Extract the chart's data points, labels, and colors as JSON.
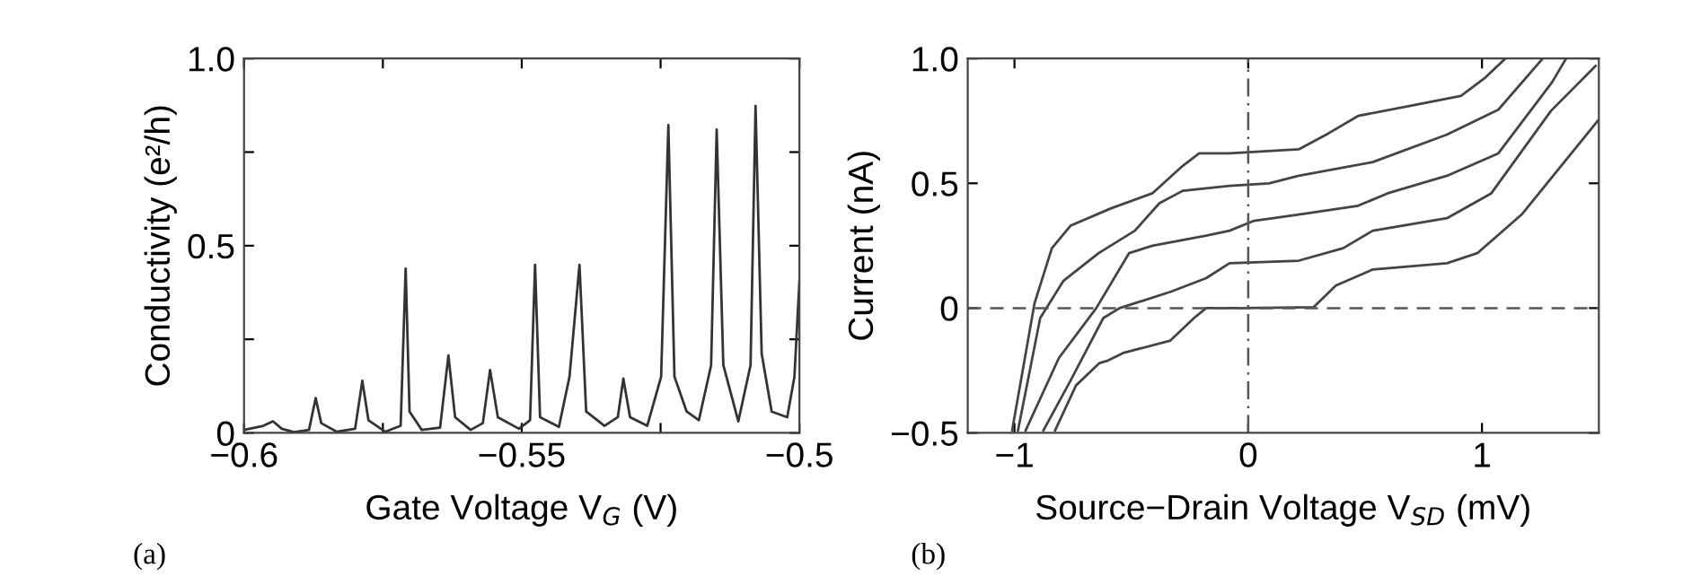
{
  "chart_data": [
    {
      "type": "line",
      "xlabel": "Gate Voltage V$_{G}$ (V)",
      "ylabel": "Conductivity (e²/h)",
      "annotations": [
        "(a)"
      ],
      "xlim": [
        -0.6,
        -0.5
      ],
      "ylim": [
        0,
        1.0
      ],
      "xticks": [
        {
          "value": -0.6,
          "label": "−0.6"
        },
        {
          "value": -0.575,
          "label": null
        },
        {
          "value": -0.55,
          "label": "−0.55"
        },
        {
          "value": -0.525,
          "label": null
        },
        {
          "value": -0.5,
          "label": "−0.5"
        }
      ],
      "yticks": [
        0,
        {
          "value": 0.25,
          "label": null
        },
        0.5,
        {
          "value": 0.75,
          "label": null
        },
        {
          "value": 1.0,
          "label": "1.0"
        }
      ],
      "grid": false,
      "legend": false,
      "marker": "none",
      "line_style": "solid",
      "series": [
        {
          "color": "#333333",
          "x": [
            -0.6,
            -0.5965,
            -0.5948,
            -0.5932,
            -0.591,
            -0.5883,
            -0.5871,
            -0.5861,
            -0.5833,
            -0.58,
            -0.5787,
            -0.5776,
            -0.5746,
            -0.5718,
            -0.5709,
            -0.5702,
            -0.568,
            -0.5647,
            -0.5632,
            -0.562,
            -0.5592,
            -0.557,
            -0.5557,
            -0.5543,
            -0.5505,
            -0.5485,
            -0.5476,
            -0.5467,
            -0.5433,
            -0.5414,
            -0.5396,
            -0.5384,
            -0.5351,
            -0.5327,
            -0.5317,
            -0.5305,
            -0.5274,
            -0.5249,
            -0.5236,
            -0.5225,
            -0.5203,
            -0.5181,
            -0.5159,
            -0.5149,
            -0.5137,
            -0.511,
            -0.5088,
            -0.5079,
            -0.5068,
            -0.505,
            -0.5022,
            -0.5009,
            -0.5
          ],
          "values": [
            0.008,
            0.019,
            0.031,
            0.011,
            0.002,
            0.008,
            0.093,
            0.026,
            0.003,
            0.011,
            0.139,
            0.034,
            0.003,
            0.019,
            0.439,
            0.057,
            0.008,
            0.014,
            0.207,
            0.042,
            0.008,
            0.026,
            0.168,
            0.042,
            0.011,
            0.034,
            0.449,
            0.042,
            0.016,
            0.15,
            0.449,
            0.057,
            0.019,
            0.042,
            0.145,
            0.042,
            0.019,
            0.15,
            0.822,
            0.15,
            0.057,
            0.034,
            0.181,
            0.81,
            0.181,
            0.031,
            0.181,
            0.873,
            0.212,
            0.057,
            0.042,
            0.15,
            0.405
          ]
        }
      ]
    },
    {
      "type": "line",
      "xlabel": "Source−Drain Voltage V$_{SD}$ (mV)",
      "ylabel": "Current (nA)",
      "annotations": [
        "(b)"
      ],
      "xlim": [
        -1.2,
        1.5
      ],
      "ylim": [
        -0.5,
        1.0
      ],
      "xticks": [
        {
          "value": -1,
          "label": "−1"
        },
        0,
        1
      ],
      "yticks": [
        {
          "value": -0.5,
          "label": "−0.5"
        },
        0,
        0.5,
        {
          "value": 1.0,
          "label": "1.0"
        }
      ],
      "grid": false,
      "legend": false,
      "marker": "none",
      "line_style": "solid",
      "ref_lines": [
        {
          "axis": "y",
          "value": 0,
          "label": null,
          "color": "#555555",
          "line_style": "dashed"
        },
        {
          "axis": "x",
          "value": 0,
          "label": null,
          "color": "#555555",
          "line_style": "dashdot"
        }
      ],
      "series": [
        {
          "color": "#444444",
          "x": [
            -1.01,
            -0.914,
            -0.84,
            -0.76,
            -0.586,
            -0.41,
            -0.28,
            -0.21,
            -0.08,
            0.216,
            0.343,
            0.47,
            0.69,
            0.91,
            1.01,
            1.1
          ],
          "values": [
            -0.49,
            0.02,
            0.24,
            0.33,
            0.4,
            0.46,
            0.57,
            0.62,
            0.62,
            0.636,
            0.7,
            0.77,
            0.81,
            0.85,
            0.92,
            1.0
          ]
        },
        {
          "color": "#444444",
          "x": [
            -0.985,
            -0.89,
            -0.79,
            -0.64,
            -0.485,
            -0.38,
            -0.28,
            -0.08,
            0.089,
            0.216,
            0.533,
            0.85,
            1.07,
            1.26
          ],
          "values": [
            -0.49,
            -0.04,
            0.11,
            0.22,
            0.31,
            0.42,
            0.47,
            0.49,
            0.5,
            0.53,
            0.585,
            0.695,
            0.795,
            1.0
          ]
        },
        {
          "color": "#444444",
          "x": [
            -0.952,
            -0.81,
            -0.65,
            -0.51,
            -0.41,
            -0.18,
            -0.08,
            0.025,
            0.216,
            0.47,
            0.597,
            0.85,
            1.07,
            1.3,
            1.36
          ],
          "values": [
            -0.49,
            -0.2,
            0,
            0.22,
            0.25,
            0.29,
            0.31,
            0.35,
            0.375,
            0.41,
            0.46,
            0.53,
            0.62,
            0.905,
            1.0
          ]
        },
        {
          "color": "#444444",
          "x": [
            -0.876,
            -0.76,
            -0.62,
            -0.55,
            -0.33,
            -0.18,
            -0.08,
            0.216,
            0.406,
            0.533,
            0.85,
            1.04,
            1.295,
            1.486
          ],
          "values": [
            -0.49,
            -0.29,
            -0.04,
            0,
            0.066,
            0.12,
            0.18,
            0.19,
            0.24,
            0.31,
            0.36,
            0.46,
            0.79,
            0.97
          ]
        },
        {
          "color": "#444444",
          "x": [
            -0.826,
            -0.737,
            -0.636,
            -0.6,
            -0.535,
            -0.333,
            -0.232,
            -0.18,
            -0.03,
            0.28,
            0.375,
            0.533,
            0.85,
            0.98,
            1.17,
            1.495
          ],
          "values": [
            -0.49,
            -0.31,
            -0.22,
            -0.21,
            -0.18,
            -0.13,
            -0.04,
            0,
            0,
            0.004,
            0.09,
            0.155,
            0.18,
            0.22,
            0.375,
            0.75
          ]
        }
      ]
    }
  ]
}
